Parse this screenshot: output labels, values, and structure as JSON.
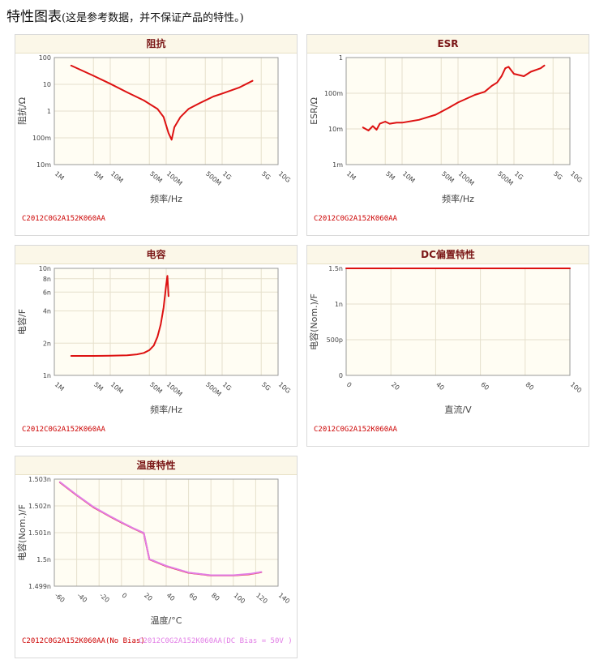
{
  "page": {
    "title": "特性图表",
    "note": "(这是参考数据，并不保证产品的特性。)"
  },
  "colors": {
    "header_bg": "#fbf7e8",
    "header_text": "#7a1616",
    "plot_bg": "#fffdf3",
    "grid": "#e6e0cc",
    "red_series": "#dd1111",
    "pink_series": "#e27ee6",
    "caption_red": "#cc0000"
  },
  "chart_data": [
    {
      "id": "impedance",
      "type": "line",
      "title": "阻抗",
      "xlabel": "频率/Hz",
      "ylabel": "阻抗/Ω",
      "xscale": "log",
      "yscale": "log",
      "xlim": [
        1000000,
        10000000000
      ],
      "ylim": [
        0.01,
        100
      ],
      "x_ticks": [
        {
          "v": 1000000,
          "label": "1M"
        },
        {
          "v": 5000000,
          "label": "5M"
        },
        {
          "v": 10000000,
          "label": "10M"
        },
        {
          "v": 50000000,
          "label": "50M"
        },
        {
          "v": 100000000,
          "label": "100M"
        },
        {
          "v": 500000000,
          "label": "500M"
        },
        {
          "v": 1000000000,
          "label": "1G"
        },
        {
          "v": 5000000000,
          "label": "5G"
        },
        {
          "v": 10000000000,
          "label": "10G"
        }
      ],
      "y_ticks": [
        {
          "v": 0.01,
          "label": "10m"
        },
        {
          "v": 0.1,
          "label": "100m"
        },
        {
          "v": 1,
          "label": "1"
        },
        {
          "v": 10,
          "label": "10"
        },
        {
          "v": 100,
          "label": "100"
        }
      ],
      "grid": true,
      "series": [
        {
          "color": "#dd1111",
          "points": [
            [
              2000000,
              50
            ],
            [
              5000000,
              21
            ],
            [
              10000000,
              10.5
            ],
            [
              20000000,
              5
            ],
            [
              40000000,
              2.5
            ],
            [
              70000000,
              1.2
            ],
            [
              90000000,
              0.6
            ],
            [
              110000000,
              0.15
            ],
            [
              125000000,
              0.085
            ],
            [
              140000000,
              0.25
            ],
            [
              180000000,
              0.6
            ],
            [
              250000000,
              1.2
            ],
            [
              400000000,
              2
            ],
            [
              700000000,
              3.5
            ],
            [
              1000000000,
              4.5
            ],
            [
              2000000000,
              7.5
            ],
            [
              3500000000,
              13.5
            ]
          ]
        }
      ],
      "caption": "C2012C0G2A152K060AA"
    },
    {
      "id": "esr",
      "type": "line",
      "title": "ESR",
      "xlabel": "频率/Hz",
      "ylabel": "ESR/Ω",
      "xscale": "log",
      "yscale": "log",
      "xlim": [
        1000000,
        10000000000
      ],
      "ylim": [
        0.001,
        1
      ],
      "x_ticks": [
        {
          "v": 1000000,
          "label": "1M"
        },
        {
          "v": 5000000,
          "label": "5M"
        },
        {
          "v": 10000000,
          "label": "10M"
        },
        {
          "v": 50000000,
          "label": "50M"
        },
        {
          "v": 100000000,
          "label": "100M"
        },
        {
          "v": 500000000,
          "label": "500M"
        },
        {
          "v": 1000000000,
          "label": "1G"
        },
        {
          "v": 5000000000,
          "label": "5G"
        },
        {
          "v": 10000000000,
          "label": "10G"
        }
      ],
      "y_ticks": [
        {
          "v": 0.001,
          "label": "1m"
        },
        {
          "v": 0.01,
          "label": "10m"
        },
        {
          "v": 0.1,
          "label": "100m"
        },
        {
          "v": 1,
          "label": "1"
        }
      ],
      "grid": true,
      "series": [
        {
          "color": "#dd1111",
          "points": [
            [
              2000000,
              0.011
            ],
            [
              2500000,
              0.009
            ],
            [
              3000000,
              0.012
            ],
            [
              3500000,
              0.0095
            ],
            [
              4000000,
              0.014
            ],
            [
              5000000,
              0.016
            ],
            [
              6000000,
              0.014
            ],
            [
              8000000,
              0.015
            ],
            [
              10000000,
              0.015
            ],
            [
              20000000,
              0.018
            ],
            [
              40000000,
              0.025
            ],
            [
              70000000,
              0.04
            ],
            [
              100000000,
              0.055
            ],
            [
              200000000,
              0.09
            ],
            [
              300000000,
              0.11
            ],
            [
              400000000,
              0.16
            ],
            [
              500000000,
              0.2
            ],
            [
              600000000,
              0.3
            ],
            [
              700000000,
              0.5
            ],
            [
              800000000,
              0.55
            ],
            [
              1000000000,
              0.35
            ],
            [
              1500000000,
              0.3
            ],
            [
              2000000000,
              0.4
            ],
            [
              3000000000,
              0.5
            ],
            [
              3500000000,
              0.6
            ]
          ]
        }
      ],
      "caption": "C2012C0G2A152K060AA"
    },
    {
      "id": "capacitance",
      "type": "line",
      "title": "电容",
      "xlabel": "频率/Hz",
      "ylabel": "电容/F",
      "xscale": "log",
      "yscale": "log",
      "xlim": [
        1000000,
        10000000000
      ],
      "ylim": [
        1e-09,
        1e-08
      ],
      "x_ticks": [
        {
          "v": 1000000,
          "label": "1M"
        },
        {
          "v": 5000000,
          "label": "5M"
        },
        {
          "v": 10000000,
          "label": "10M"
        },
        {
          "v": 50000000,
          "label": "50M"
        },
        {
          "v": 100000000,
          "label": "100M"
        },
        {
          "v": 500000000,
          "label": "500M"
        },
        {
          "v": 1000000000,
          "label": "1G"
        },
        {
          "v": 5000000000,
          "label": "5G"
        },
        {
          "v": 10000000000,
          "label": "10G"
        }
      ],
      "y_ticks": [
        {
          "v": 1e-09,
          "label": "1n"
        },
        {
          "v": 2e-09,
          "label": "2n"
        },
        {
          "v": 4e-09,
          "label": "4n"
        },
        {
          "v": 6e-09,
          "label": "6n"
        },
        {
          "v": 8e-09,
          "label": "8n"
        },
        {
          "v": 1e-08,
          "label": "10n"
        }
      ],
      "grid": true,
      "series": [
        {
          "color": "#dd1111",
          "points": [
            [
              2000000,
              1.52e-09
            ],
            [
              5000000,
              1.52e-09
            ],
            [
              10000000,
              1.525e-09
            ],
            [
              20000000,
              1.54e-09
            ],
            [
              30000000,
              1.57e-09
            ],
            [
              40000000,
              1.62e-09
            ],
            [
              50000000,
              1.72e-09
            ],
            [
              60000000,
              1.9e-09
            ],
            [
              70000000,
              2.3e-09
            ],
            [
              80000000,
              3e-09
            ],
            [
              90000000,
              4.3e-09
            ],
            [
              100000000,
              7e-09
            ],
            [
              105000000,
              8.5e-09
            ],
            [
              110000000,
              5.5e-09
            ]
          ]
        }
      ],
      "caption": "C2012C0G2A152K060AA"
    },
    {
      "id": "dc_bias",
      "type": "line",
      "title": "DC偏置特性",
      "xlabel": "直流/V",
      "ylabel": "电容(Nom.)/F",
      "xscale": "linear",
      "yscale": "linear",
      "xlim": [
        0,
        100
      ],
      "ylim": [
        0,
        1.5e-09
      ],
      "x_ticks": [
        {
          "v": 0,
          "label": "0"
        },
        {
          "v": 20,
          "label": "20"
        },
        {
          "v": 40,
          "label": "40"
        },
        {
          "v": 60,
          "label": "60"
        },
        {
          "v": 80,
          "label": "80"
        },
        {
          "v": 100,
          "label": "100"
        }
      ],
      "y_ticks": [
        {
          "v": 0,
          "label": "0"
        },
        {
          "v": 5e-10,
          "label": "500p"
        },
        {
          "v": 1e-09,
          "label": "1n"
        },
        {
          "v": 1.5e-09,
          "label": "1.5n"
        }
      ],
      "grid": true,
      "series": [
        {
          "color": "#dd1111",
          "points": [
            [
              0,
              1.5e-09
            ],
            [
              100,
              1.5e-09
            ]
          ]
        }
      ],
      "caption": "C2012C0G2A152K060AA"
    },
    {
      "id": "temperature",
      "type": "line",
      "title": "温度特性",
      "xlabel": "温度/°C",
      "ylabel": "电容(Nom.)/F",
      "xscale": "linear",
      "yscale": "linear",
      "xlim": [
        -60,
        140
      ],
      "ylim": [
        1.499e-09,
        1.503e-09
      ],
      "x_ticks": [
        {
          "v": -60,
          "label": "-60"
        },
        {
          "v": -40,
          "label": "-40"
        },
        {
          "v": -20,
          "label": "-20"
        },
        {
          "v": 0,
          "label": "0"
        },
        {
          "v": 20,
          "label": "20"
        },
        {
          "v": 40,
          "label": "40"
        },
        {
          "v": 60,
          "label": "60"
        },
        {
          "v": 80,
          "label": "80"
        },
        {
          "v": 100,
          "label": "100"
        },
        {
          "v": 120,
          "label": "120"
        },
        {
          "v": 140,
          "label": "140"
        }
      ],
      "y_ticks": [
        {
          "v": 1.499e-09,
          "label": "1.499n"
        },
        {
          "v": 1.5e-09,
          "label": "1.5n"
        },
        {
          "v": 1.501e-09,
          "label": "1.501n"
        },
        {
          "v": 1.502e-09,
          "label": "1.502n"
        },
        {
          "v": 1.503e-09,
          "label": "1.503n"
        }
      ],
      "grid": true,
      "series": [
        {
          "name": "C2012C0G2A152K060AA(No Bias)",
          "color": "#dd1111",
          "points": [
            [
              -55,
              1.50288e-09
            ],
            [
              -40,
              1.5024e-09
            ],
            [
              -25,
              1.50195e-09
            ],
            [
              -10,
              1.5016e-09
            ],
            [
              0,
              1.50138e-09
            ],
            [
              10,
              1.50117e-09
            ],
            [
              20,
              1.50098e-09
            ],
            [
              25,
              1.5e-09
            ],
            [
              40,
              1.49975e-09
            ],
            [
              60,
              1.4995e-09
            ],
            [
              80,
              1.4994e-09
            ],
            [
              100,
              1.4994e-09
            ],
            [
              115,
              1.49945e-09
            ],
            [
              125,
              1.49952e-09
            ]
          ]
        },
        {
          "name": "C2012C0G2A152K060AA(DC Bias = 50V )",
          "color": "#e27ee6",
          "points": [
            [
              -55,
              1.50289e-09
            ],
            [
              -40,
              1.50241e-09
            ],
            [
              -25,
              1.50196e-09
            ],
            [
              -10,
              1.50161e-09
            ],
            [
              0,
              1.50139e-09
            ],
            [
              10,
              1.50118e-09
            ],
            [
              20,
              1.50099e-09
            ],
            [
              25,
              1.50001e-09
            ],
            [
              40,
              1.49976e-09
            ],
            [
              60,
              1.49951e-09
            ],
            [
              80,
              1.49941e-09
            ],
            [
              100,
              1.49941e-09
            ],
            [
              115,
              1.49946e-09
            ],
            [
              125,
              1.49953e-09
            ]
          ]
        }
      ],
      "caption": "C2012C0G2A152K060AA(No Bias)",
      "caption2": "C2012C0G2A152K060AA(DC Bias = 50V )"
    }
  ]
}
